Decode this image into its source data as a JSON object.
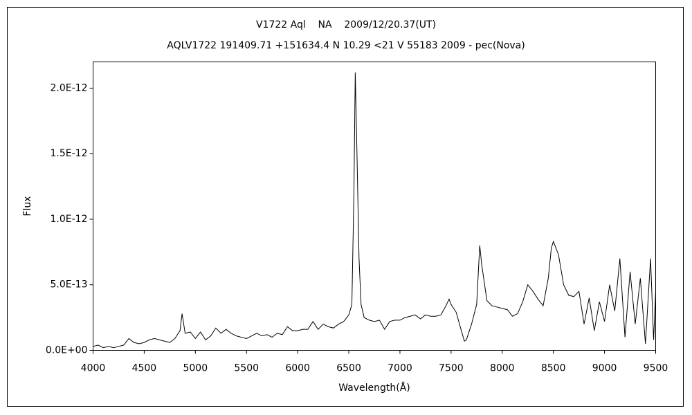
{
  "chart_data": {
    "type": "line",
    "title": "V1722 Aql    NA    2009/12/20.37(UT)",
    "subtitle": "AQLV1722 191409.71 +151634.4 N 10.29 <21 V 55183 2009 - pec(Nova)",
    "x_label": "Wavelength(Å)",
    "y_label": "Flux",
    "color": "#000000",
    "xlim": [
      4000,
      9500
    ],
    "ylim": [
      0,
      2.2e-12
    ],
    "xticks": [
      4000,
      4500,
      5000,
      5500,
      6000,
      6500,
      7000,
      7500,
      8000,
      8500,
      9000,
      9500
    ],
    "yticks": [
      {
        "value": 0,
        "label": "0.0E+00"
      },
      {
        "value": 5e-13,
        "label": "5.0E-13"
      },
      {
        "value": 1e-12,
        "label": "1.0E-12"
      },
      {
        "value": 1.5e-12,
        "label": "1.5E-12"
      },
      {
        "value": 2e-12,
        "label": "2.0E-12"
      }
    ],
    "x": [
      4000,
      4050,
      4100,
      4150,
      4200,
      4250,
      4300,
      4350,
      4400,
      4450,
      4500,
      4550,
      4600,
      4650,
      4700,
      4750,
      4800,
      4850,
      4870,
      4900,
      4950,
      5000,
      5050,
      5100,
      5150,
      5200,
      5250,
      5300,
      5350,
      5400,
      5450,
      5500,
      5550,
      5600,
      5650,
      5700,
      5750,
      5800,
      5850,
      5900,
      5950,
      6000,
      6050,
      6100,
      6150,
      6200,
      6250,
      6300,
      6350,
      6400,
      6450,
      6500,
      6530,
      6550,
      6563,
      6580,
      6600,
      6620,
      6650,
      6700,
      6750,
      6800,
      6850,
      6900,
      6950,
      7000,
      7050,
      7100,
      7150,
      7200,
      7250,
      7300,
      7350,
      7400,
      7450,
      7480,
      7500,
      7550,
      7600,
      7630,
      7650,
      7700,
      7750,
      7780,
      7800,
      7850,
      7900,
      7950,
      8000,
      8050,
      8100,
      8150,
      8200,
      8250,
      8300,
      8350,
      8400,
      8450,
      8480,
      8500,
      8550,
      8600,
      8650,
      8700,
      8750,
      8800,
      8850,
      8900,
      8950,
      9000,
      9050,
      9100,
      9150,
      9200,
      9250,
      9300,
      9350,
      9400,
      9450,
      9480,
      9500
    ],
    "values": [
      3e-14,
      4e-14,
      2e-14,
      3e-14,
      2e-14,
      3e-14,
      4e-14,
      9e-14,
      6e-14,
      5e-14,
      6e-14,
      8e-14,
      9e-14,
      8e-14,
      7e-14,
      6e-14,
      9e-14,
      1.5e-13,
      2.8e-13,
      1.3e-13,
      1.4e-13,
      9e-14,
      1.4e-13,
      8e-14,
      1.1e-13,
      1.7e-13,
      1.3e-13,
      1.6e-13,
      1.3e-13,
      1.1e-13,
      1e-13,
      9e-14,
      1.1e-13,
      1.3e-13,
      1.1e-13,
      1.2e-13,
      1e-13,
      1.3e-13,
      1.2e-13,
      1.8e-13,
      1.5e-13,
      1.5e-13,
      1.6e-13,
      1.6e-13,
      2.2e-13,
      1.6e-13,
      2e-13,
      1.8e-13,
      1.7e-13,
      2e-13,
      2.2e-13,
      2.7e-13,
      3.5e-13,
      1.2e-12,
      2.12e-12,
      1.5e-12,
      7e-13,
      3.5e-13,
      2.5e-13,
      2.3e-13,
      2.2e-13,
      2.3e-13,
      1.6e-13,
      2.2e-13,
      2.3e-13,
      2.3e-13,
      2.5e-13,
      2.6e-13,
      2.7e-13,
      2.4e-13,
      2.7e-13,
      2.6e-13,
      2.6e-13,
      2.7e-13,
      3.4e-13,
      3.9e-13,
      3.5e-13,
      2.9e-13,
      1.5e-13,
      7e-14,
      8e-14,
      2e-13,
      3.5e-13,
      8e-13,
      6.5e-13,
      3.8e-13,
      3.4e-13,
      3.3e-13,
      3.2e-13,
      3.1e-13,
      2.6e-13,
      2.8e-13,
      3.7e-13,
      5e-13,
      4.5e-13,
      3.9e-13,
      3.4e-13,
      5.5e-13,
      7.8e-13,
      8.3e-13,
      7.3e-13,
      5e-13,
      4.2e-13,
      4.1e-13,
      4.5e-13,
      2e-13,
      4e-13,
      1.5e-13,
      3.7e-13,
      2.2e-13,
      5e-13,
      3e-13,
      7e-13,
      1e-13,
      6e-13,
      2e-13,
      5.5e-13,
      5e-14,
      7e-13,
      8e-14,
      4.5e-13
    ]
  }
}
